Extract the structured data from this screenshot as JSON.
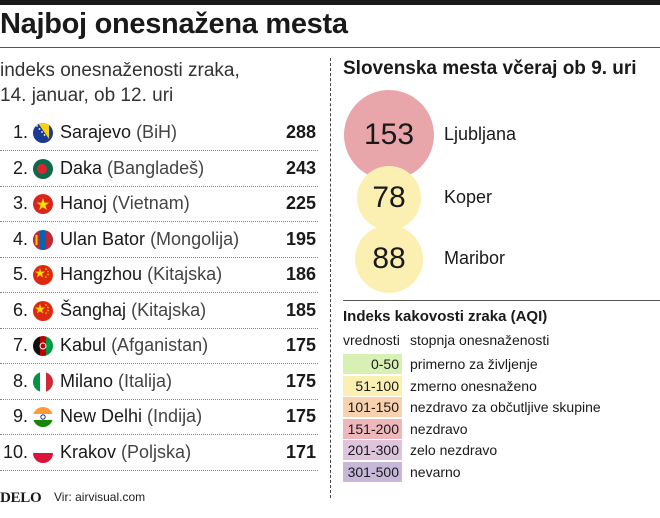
{
  "title": "Najboj onesnažena mesta",
  "subtitle_line1": "indeks onesnaženosti zraka,",
  "subtitle_line2": "14. januar, ob 12. uri",
  "chart_data": [
    {
      "type": "table",
      "rows": [
        {
          "rank": "1.",
          "city": "Sarajevo",
          "country": "(BiH)",
          "aqi": 288,
          "flag": "bosnia-flag-icon"
        },
        {
          "rank": "2.",
          "city": "Daka",
          "country": "(Bangladeš)",
          "aqi": 243,
          "flag": "bangladesh-flag-icon"
        },
        {
          "rank": "3.",
          "city": "Hanoj",
          "country": "(Vietnam)",
          "aqi": 225,
          "flag": "vietnam-flag-icon"
        },
        {
          "rank": "4.",
          "city": "Ulan Bator",
          "country": "(Mongolija)",
          "aqi": 195,
          "flag": "mongolia-flag-icon"
        },
        {
          "rank": "5.",
          "city": "Hangzhou",
          "country": "(Kitajska)",
          "aqi": 186,
          "flag": "china-flag-icon"
        },
        {
          "rank": "6.",
          "city": "Šanghaj",
          "country": "(Kitajska)",
          "aqi": 185,
          "flag": "china-flag-icon"
        },
        {
          "rank": "7.",
          "city": "Kabul",
          "country": "(Afganistan)",
          "aqi": 175,
          "flag": "afghanistan-flag-icon"
        },
        {
          "rank": "8.",
          "city": "Milano",
          "country": "(Italija)",
          "aqi": 175,
          "flag": "italy-flag-icon"
        },
        {
          "rank": "9.",
          "city": "New Delhi",
          "country": "(Indija)",
          "aqi": 175,
          "flag": "india-flag-icon"
        },
        {
          "rank": "10.",
          "city": "Krakov",
          "country": "(Poljska)",
          "aqi": 171,
          "flag": "poland-flag-icon"
        }
      ]
    },
    {
      "type": "scatter",
      "title": "Slovenska mesta včeraj ob 9. uri",
      "points": [
        {
          "city": "Ljubljana",
          "value": 153,
          "color": "#e8a5aa"
        },
        {
          "city": "Koper",
          "value": 78,
          "color": "#fbf0b2"
        },
        {
          "city": "Maribor",
          "value": 88,
          "color": "#fbf0b2"
        }
      ]
    }
  ],
  "legend": {
    "title": "Indeks kakovosti zraka (AQI)",
    "col_values": "vrednosti",
    "col_levels": "stopnja onesnaženosti",
    "rows": [
      {
        "range": "0-50",
        "label": "primerno za življenje",
        "color": "#d9f0b4"
      },
      {
        "range": "51-100",
        "label": "zmerno onesnaženo",
        "color": "#fbf0b2"
      },
      {
        "range": "101-150",
        "label": "nezdravo za občutljive skupine",
        "color": "#f8d2ae"
      },
      {
        "range": "151-200",
        "label": "nezdravo",
        "color": "#eeb7bb"
      },
      {
        "range": "201-300",
        "label": "zelo nezdravo",
        "color": "#dfc4dd"
      },
      {
        "range": "301-500",
        "label": "nevarno",
        "color": "#c7b8da"
      }
    ]
  },
  "footer": {
    "logo": "DELO",
    "source": "Vir: airvisual.com"
  }
}
